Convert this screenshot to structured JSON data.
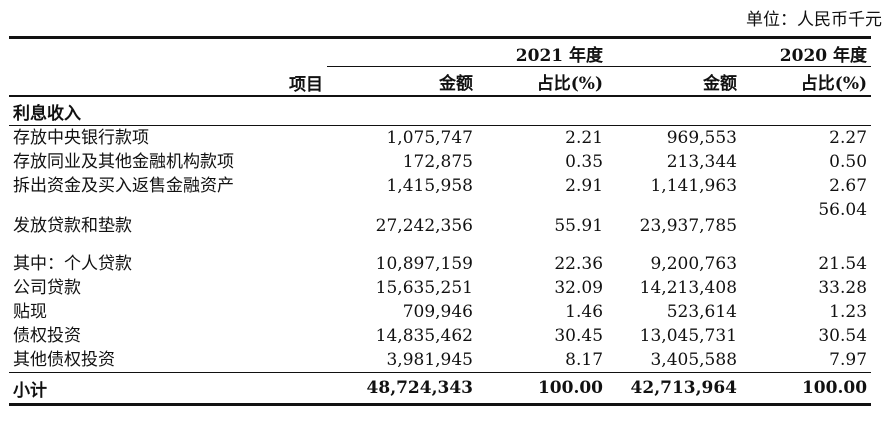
{
  "unit_note": "单位：人民币千元",
  "header": {
    "item_label": "项目",
    "year_2021": "2021 年度",
    "year_2020": "2020 年度",
    "amount_label": "金额",
    "ratio_label": "占比(%)"
  },
  "section": {
    "title": "利息收入"
  },
  "rows": [
    {
      "label": "存放中央银行款项",
      "a2021": "1,075,747",
      "r2021": "2.21",
      "a2020": "969,553",
      "r2020": "2.27"
    },
    {
      "label": "存放同业及其他金融机构款项",
      "a2021": "172,875",
      "r2021": "0.35",
      "a2020": "213,344",
      "r2020": "0.50"
    },
    {
      "label": "拆出资金及买入返售金融资产",
      "a2021": "1,415,958",
      "r2021": "2.91",
      "a2020": "1,141,963",
      "r2020": "2.67"
    },
    {
      "label": "发放贷款和垫款",
      "a2021": "27,242,356",
      "r2021": "55.91",
      "a2020": "23,937,785",
      "r2020": "56.04"
    },
    {
      "label": "其中：个人贷款",
      "a2021": "10,897,159",
      "r2021": "22.36",
      "a2020": "9,200,763",
      "r2020": "21.54"
    },
    {
      "label": "公司贷款",
      "a2021": "15,635,251",
      "r2021": "32.09",
      "a2020": "14,213,408",
      "r2020": "33.28"
    },
    {
      "label": "贴现",
      "a2021": "709,946",
      "r2021": "1.46",
      "a2020": "523,614",
      "r2020": "1.23"
    },
    {
      "label": "债权投资",
      "a2021": "14,835,462",
      "r2021": "30.45",
      "a2020": "13,045,731",
      "r2020": "30.54"
    },
    {
      "label": "其他债权投资",
      "a2021": "3,981,945",
      "r2021": "8.17",
      "a2020": "3,405,588",
      "r2020": "7.97"
    }
  ],
  "total": {
    "label": "小计",
    "a2021": "48,724,343",
    "r2021": "100.00",
    "a2020": "42,713,964",
    "r2020": "100.00"
  }
}
